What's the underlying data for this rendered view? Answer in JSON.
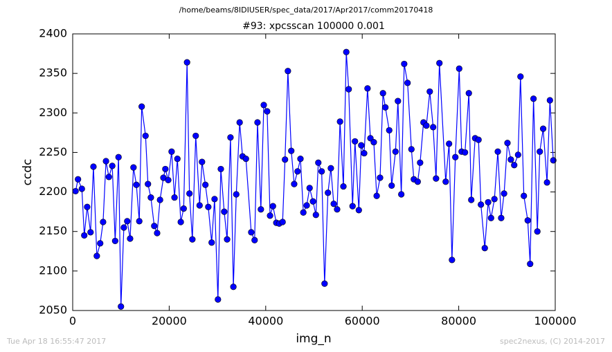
{
  "chart_data": {
    "type": "line",
    "suptitle": "/home/beams/8IDIUSER/spec_data/2017/Apr2017/comm20170418",
    "title": "#93: xpcsscan 100000 0.001",
    "xlabel": "img_n",
    "ylabel": "ccdc",
    "footer_left": "Tue Apr 18 16:55:47 2017",
    "footer_right": "spec2nexus, (C) 2014-2017",
    "color": "#0000ff",
    "marker": "circle",
    "xlim": [
      0,
      100000
    ],
    "xticks": [
      0,
      20000,
      40000,
      60000,
      80000,
      100000
    ],
    "ylim": [
      2050,
      2400
    ],
    "yticks": [
      2050,
      2100,
      2150,
      2200,
      2250,
      2300,
      2350,
      2400
    ],
    "grid": false,
    "x": [
      600,
      1100,
      1900,
      2400,
      3000,
      3700,
      4300,
      5000,
      5700,
      6300,
      6900,
      7500,
      8200,
      8800,
      9500,
      10000,
      10600,
      11300,
      11900,
      12600,
      13200,
      13800,
      14300,
      15100,
      15600,
      16200,
      16900,
      17500,
      18100,
      18800,
      19200,
      19800,
      20500,
      21100,
      21700,
      22400,
      23000,
      23700,
      24200,
      24800,
      25500,
      26300,
      26800,
      27500,
      28100,
      28800,
      29400,
      30100,
      30700,
      31400,
      32000,
      32700,
      33300,
      33900,
      34600,
      35200,
      35900,
      37000,
      37700,
      38300,
      39000,
      39600,
      40300,
      40900,
      41500,
      42200,
      42800,
      43500,
      44000,
      44600,
      45300,
      45900,
      46600,
      47200,
      47800,
      48500,
      49100,
      49800,
      50400,
      50900,
      51600,
      52200,
      52900,
      53500,
      54100,
      54800,
      55400,
      56100,
      56700,
      57200,
      58000,
      58500,
      59300,
      59800,
      60400,
      61100,
      61700,
      62400,
      63000,
      63700,
      64300,
      64800,
      65600,
      66100,
      66900,
      67400,
      68100,
      68700,
      69400,
      70200,
      70700,
      71500,
      72000,
      72700,
      73300,
      74000,
      74700,
      75300,
      76000,
      77300,
      78000,
      78600,
      79300,
      80100,
      80600,
      81300,
      82100,
      82600,
      83400,
      84100,
      84600,
      85400,
      86100,
      86700,
      87400,
      88100,
      88800,
      89400,
      90100,
      90800,
      91500,
      92300,
      92800,
      93500,
      94300,
      94800,
      95500,
      96300,
      96800,
      97500,
      98300,
      98900,
      99600
    ],
    "values": [
      2201,
      2216,
      2204,
      2145,
      2181,
      2149,
      2232,
      2119,
      2135,
      2162,
      2239,
      2219,
      2233,
      2138,
      2244,
      2055,
      2155,
      2163,
      2141,
      2231,
      2209,
      2163,
      2308,
      2271,
      2210,
      2193,
      2157,
      2148,
      2190,
      2218,
      2229,
      2215,
      2251,
      2193,
      2242,
      2162,
      2179,
      2364,
      2198,
      2140,
      2271,
      2183,
      2238,
      2209,
      2181,
      2136,
      2191,
      2064,
      2229,
      2175,
      2140,
      2269,
      2080,
      2197,
      2288,
      2245,
      2242,
      2149,
      2139,
      2288,
      2178,
      2310,
      2302,
      2170,
      2182,
      2161,
      2160,
      2162,
      2241,
      2353,
      2252,
      2210,
      2226,
      2242,
      2174,
      2183,
      2205,
      2188,
      2171,
      2237,
      2226,
      2084,
      2199,
      2230,
      2185,
      2178,
      2289,
      2207,
      2377,
      2330,
      2182,
      2264,
      2177,
      2259,
      2249,
      2331,
      2268,
      2263,
      2195,
      2218,
      2325,
      2307,
      2278,
      2208,
      2251,
      2315,
      2197,
      2362,
      2338,
      2254,
      2216,
      2213,
      2237,
      2288,
      2284,
      2327,
      2282,
      2217,
      2363,
      2213,
      2261,
      2114,
      2244,
      2356,
      2251,
      2250,
      2325,
      2190,
      2268,
      2266,
      2184,
      2129,
      2187,
      2167,
      2191,
      2251,
      2167,
      2198,
      2262,
      2241,
      2234,
      2247,
      2346,
      2195,
      2164,
      2109,
      2318,
      2150,
      2251,
      2280,
      2212,
      2316,
      2240
    ]
  }
}
